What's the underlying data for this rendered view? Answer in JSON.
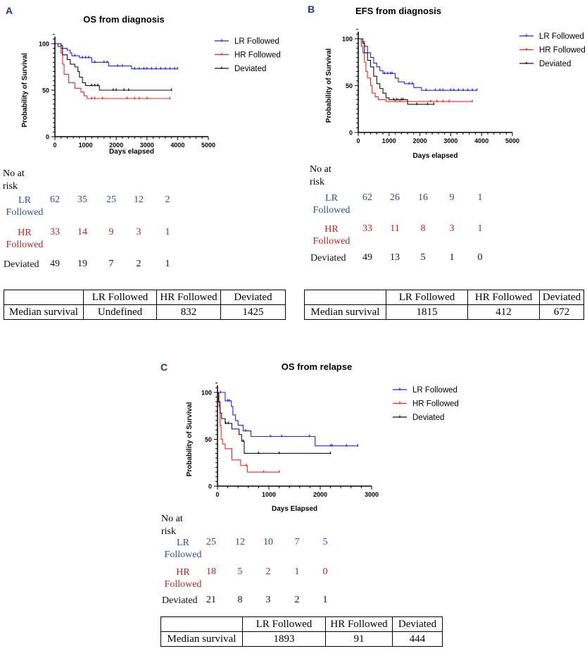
{
  "chart_data": [
    {
      "panel_letter": "A",
      "type": "line",
      "title": "OS from diagnosis",
      "xlabel": "Days elapsed",
      "ylabel": "Probability of Survival",
      "xlim": [
        0,
        5000
      ],
      "ylim": [
        0,
        100
      ],
      "xticks": [
        0,
        1000,
        2000,
        3000,
        4000,
        5000
      ],
      "yticks": [
        0,
        50,
        100
      ],
      "legend_position": "right",
      "series": [
        {
          "name": "LR Followed",
          "color": "#1f1fff",
          "steps": [
            [
              0,
              100
            ],
            [
              100,
              97
            ],
            [
              200,
              95
            ],
            [
              400,
              93
            ],
            [
              500,
              90
            ],
            [
              550,
              87
            ],
            [
              800,
              85
            ],
            [
              1200,
              80
            ],
            [
              1750,
              76
            ],
            [
              2500,
              73
            ]
          ],
          "end": 4000,
          "censored": [
            650,
            900,
            1000,
            1100,
            1300,
            1600,
            1700,
            2050,
            2200,
            2600,
            2750,
            2900,
            3000,
            3150,
            3300,
            3450,
            3600,
            3750,
            3900,
            4000
          ]
        },
        {
          "name": "HR Followed",
          "color": "#ff2020",
          "steps": [
            [
              0,
              100
            ],
            [
              200,
              90
            ],
            [
              250,
              78
            ],
            [
              300,
              67
            ],
            [
              450,
              58
            ],
            [
              650,
              52
            ],
            [
              850,
              48
            ],
            [
              950,
              44
            ],
            [
              1050,
              41
            ]
          ],
          "end": 3750,
          "censored": [
            1200,
            1300,
            1550,
            2350,
            2600,
            2750,
            3000,
            3750
          ]
        },
        {
          "name": "Deviated",
          "color": "#111111",
          "steps": [
            [
              0,
              100
            ],
            [
              200,
              98
            ],
            [
              250,
              88
            ],
            [
              400,
              83
            ],
            [
              500,
              78
            ],
            [
              650,
              75
            ],
            [
              750,
              70
            ],
            [
              800,
              64
            ],
            [
              900,
              58
            ],
            [
              1000,
              55
            ],
            [
              1450,
              50
            ]
          ],
          "end": 3800,
          "censored": [
            1200,
            1300,
            1400,
            1900,
            2000,
            2250,
            2400,
            3800
          ]
        }
      ],
      "risk_table": {
        "heading": "No at risk",
        "rows": [
          {
            "label": "LR Followed",
            "color": "#2a4f9a",
            "values": [
              "62",
              "35",
              "25",
              "12",
              "2"
            ]
          },
          {
            "label": "HR Followed",
            "color": "#c0201c",
            "values": [
              "33",
              "14",
              "9",
              "3",
              "1"
            ]
          },
          {
            "label": "Deviated",
            "color": "#111111",
            "values": [
              "49",
              "19",
              "7",
              "2",
              "1"
            ]
          }
        ]
      },
      "median_table": {
        "columns": [
          "",
          "LR Followed",
          "HR Followed",
          "Deviated"
        ],
        "row_label": "Median survival",
        "values": [
          "Undefined",
          "832",
          "1425"
        ]
      }
    },
    {
      "panel_letter": "B",
      "type": "line",
      "title": "EFS from diagnosis",
      "xlabel": "Days elapsed",
      "ylabel": "Probability of Survival",
      "xlim": [
        0,
        5000
      ],
      "ylim": [
        0,
        100
      ],
      "xticks": [
        0,
        1000,
        2000,
        3000,
        4000,
        5000
      ],
      "yticks": [
        0,
        50,
        100
      ],
      "legend_position": "right",
      "series": [
        {
          "name": "LR Followed",
          "color": "#1f1fff",
          "steps": [
            [
              0,
              100
            ],
            [
              100,
              97
            ],
            [
              200,
              92
            ],
            [
              300,
              85
            ],
            [
              400,
              80
            ],
            [
              500,
              74
            ],
            [
              600,
              70
            ],
            [
              700,
              66
            ],
            [
              800,
              63
            ],
            [
              1200,
              58
            ],
            [
              1300,
              54
            ],
            [
              1500,
              52
            ],
            [
              1800,
              48
            ],
            [
              2050,
              45
            ]
          ],
          "end": 3850,
          "censored": [
            850,
            950,
            1050,
            1100,
            1650,
            1750,
            2200,
            2500,
            2650,
            2750,
            3000,
            3100,
            3250,
            3400,
            3550,
            3700,
            3850
          ]
        },
        {
          "name": "HR Followed",
          "color": "#ff2020",
          "steps": [
            [
              0,
              100
            ],
            [
              100,
              92
            ],
            [
              150,
              85
            ],
            [
              200,
              75
            ],
            [
              250,
              65
            ],
            [
              300,
              58
            ],
            [
              400,
              50
            ],
            [
              450,
              42
            ],
            [
              550,
              38
            ],
            [
              650,
              35
            ],
            [
              900,
              33
            ]
          ],
          "end": 3700,
          "censored": [
            1200,
            1350,
            2350,
            2550,
            2750,
            2950,
            3700
          ]
        },
        {
          "name": "Deviated",
          "color": "#111111",
          "steps": [
            [
              0,
              100
            ],
            [
              150,
              95
            ],
            [
              200,
              85
            ],
            [
              300,
              77
            ],
            [
              400,
              70
            ],
            [
              500,
              60
            ],
            [
              600,
              52
            ],
            [
              700,
              47
            ],
            [
              800,
              42
            ],
            [
              900,
              37
            ],
            [
              1000,
              35
            ],
            [
              1600,
              30
            ]
          ],
          "end": 2450,
          "censored": [
            1150,
            1250,
            1400,
            1450,
            1900,
            2250,
            2450
          ]
        }
      ],
      "risk_table": {
        "heading": "No at risk",
        "rows": [
          {
            "label": "LR Followed",
            "color": "#2a4f9a",
            "values": [
              "62",
              "26",
              "16",
              "9",
              "1"
            ]
          },
          {
            "label": "HR Followed",
            "color": "#c0201c",
            "values": [
              "33",
              "11",
              "8",
              "3",
              "1"
            ]
          },
          {
            "label": "Deviated",
            "color": "#111111",
            "values": [
              "49",
              "13",
              "5",
              "1",
              "0"
            ]
          }
        ]
      },
      "median_table": {
        "columns": [
          "",
          "LR Followed",
          "HR Followed",
          "Deviated"
        ],
        "row_label": "Median survival",
        "values": [
          "1815",
          "412",
          "672"
        ]
      }
    },
    {
      "panel_letter": "C",
      "type": "line",
      "title": "OS from relapse",
      "xlabel": "Days Elapsed",
      "ylabel": "Probability of Survival",
      "xlim": [
        0,
        3000
      ],
      "ylim": [
        0,
        100
      ],
      "xticks": [
        0,
        1000,
        2000,
        3000
      ],
      "yticks": [
        0,
        50,
        100
      ],
      "legend_position": "right",
      "series": [
        {
          "name": "LR Followed",
          "color": "#1f1fff",
          "steps": [
            [
              0,
              100
            ],
            [
              150,
              91
            ],
            [
              270,
              85
            ],
            [
              300,
              76
            ],
            [
              350,
              70
            ],
            [
              400,
              65
            ],
            [
              500,
              59
            ],
            [
              650,
              53
            ],
            [
              1900,
              43
            ]
          ],
          "end": 2730,
          "censored": [
            60,
            200,
            230,
            550,
            1030,
            1250,
            1790,
            2200,
            2230,
            2510,
            2730
          ]
        },
        {
          "name": "HR Followed",
          "color": "#ff2020",
          "steps": [
            [
              0,
              100
            ],
            [
              30,
              85
            ],
            [
              50,
              65
            ],
            [
              70,
              50
            ],
            [
              100,
              45
            ],
            [
              150,
              40
            ],
            [
              280,
              28
            ],
            [
              450,
              22
            ],
            [
              580,
              15
            ]
          ],
          "end": 1200,
          "censored": [
            560,
            900,
            1200
          ]
        },
        {
          "name": "Deviated",
          "color": "#111111",
          "steps": [
            [
              0,
              100
            ],
            [
              20,
              90
            ],
            [
              50,
              78
            ],
            [
              80,
              72
            ],
            [
              150,
              67
            ],
            [
              280,
              61
            ],
            [
              420,
              55
            ],
            [
              470,
              48
            ],
            [
              520,
              35
            ]
          ],
          "end": 2200,
          "censored": [
            160,
            210,
            500,
            800,
            1200,
            2200
          ]
        }
      ],
      "risk_table": {
        "heading": "No at risk",
        "rows": [
          {
            "label": "LR Followed",
            "color": "#2a4f9a",
            "values": [
              "25",
              "12",
              "10",
              "7",
              "5"
            ]
          },
          {
            "label": "HR Followed",
            "color": "#c0201c",
            "values": [
              "18",
              "5",
              "2",
              "1",
              "0"
            ]
          },
          {
            "label": "Deviated",
            "color": "#111111",
            "values": [
              "21",
              "8",
              "3",
              "2",
              "1"
            ]
          }
        ]
      },
      "median_table": {
        "columns": [
          "",
          "LR Followed",
          "HR Followed",
          "Deviated"
        ],
        "row_label": "Median survival",
        "values": [
          "1893",
          "91",
          "444"
        ]
      }
    }
  ]
}
